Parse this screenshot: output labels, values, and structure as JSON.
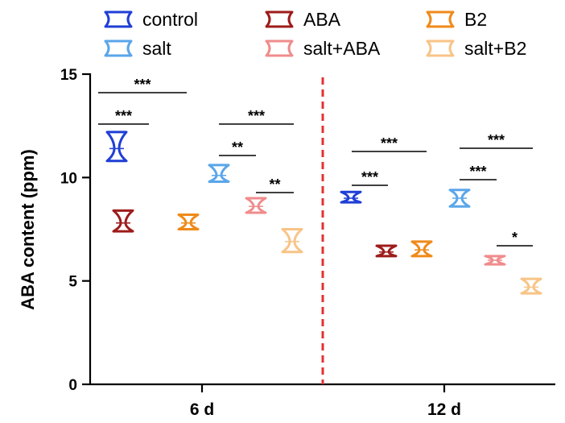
{
  "chart_data": {
    "type": "violin",
    "ylabel": "ABA content (ppm)",
    "ylim": [
      0,
      15
    ],
    "yticks": [
      0,
      5,
      10,
      15
    ],
    "categories": [
      "6 d",
      "12 d"
    ],
    "grid": false,
    "legend_position": "top",
    "series": [
      {
        "name": "control",
        "color": "#1f3fd6",
        "values": [
          11.4,
          9.0
        ],
        "ranges": [
          [
            10.8,
            12.2
          ],
          [
            8.8,
            9.3
          ]
        ]
      },
      {
        "name": "salt",
        "color": "#5aa6ea",
        "values": [
          10.1,
          9.0
        ],
        "ranges": [
          [
            9.8,
            10.6
          ],
          [
            8.6,
            9.4
          ]
        ]
      },
      {
        "name": "ABA",
        "color": "#9e1b1b",
        "values": [
          7.8,
          6.4
        ],
        "ranges": [
          [
            7.4,
            8.4
          ],
          [
            6.2,
            6.7
          ]
        ]
      },
      {
        "name": "salt+ABA",
        "color": "#f08c8c",
        "values": [
          8.6,
          6.0
        ],
        "ranges": [
          [
            8.3,
            9.0
          ],
          [
            5.8,
            6.2
          ]
        ]
      },
      {
        "name": "B2",
        "color": "#ef8a1a",
        "values": [
          7.8,
          6.5
        ],
        "ranges": [
          [
            7.5,
            8.2
          ],
          [
            6.2,
            6.9
          ]
        ]
      },
      {
        "name": "salt+B2",
        "color": "#f8c487",
        "values": [
          6.9,
          4.7
        ],
        "ranges": [
          [
            6.4,
            7.5
          ],
          [
            4.4,
            5.1
          ]
        ]
      }
    ],
    "significance": [
      {
        "group": "6 d",
        "pair": [
          "control",
          "ABA"
        ],
        "label": "***"
      },
      {
        "group": "6 d",
        "pair": [
          "control",
          "B2"
        ],
        "label": "***"
      },
      {
        "group": "6 d",
        "pair": [
          "salt",
          "salt+ABA"
        ],
        "label": "**"
      },
      {
        "group": "6 d",
        "pair": [
          "salt+ABA",
          "salt+B2"
        ],
        "label": "**"
      },
      {
        "group": "6 d",
        "pair": [
          "salt",
          "salt+B2"
        ],
        "label": "***"
      },
      {
        "group": "12 d",
        "pair": [
          "control",
          "ABA"
        ],
        "label": "***"
      },
      {
        "group": "12 d",
        "pair": [
          "control",
          "B2"
        ],
        "label": "***"
      },
      {
        "group": "12 d",
        "pair": [
          "salt",
          "salt+ABA"
        ],
        "label": "***"
      },
      {
        "group": "12 d",
        "pair": [
          "salt+ABA",
          "salt+B2"
        ],
        "label": "*"
      },
      {
        "group": "12 d",
        "pair": [
          "salt",
          "salt+B2"
        ],
        "label": "***"
      }
    ]
  }
}
